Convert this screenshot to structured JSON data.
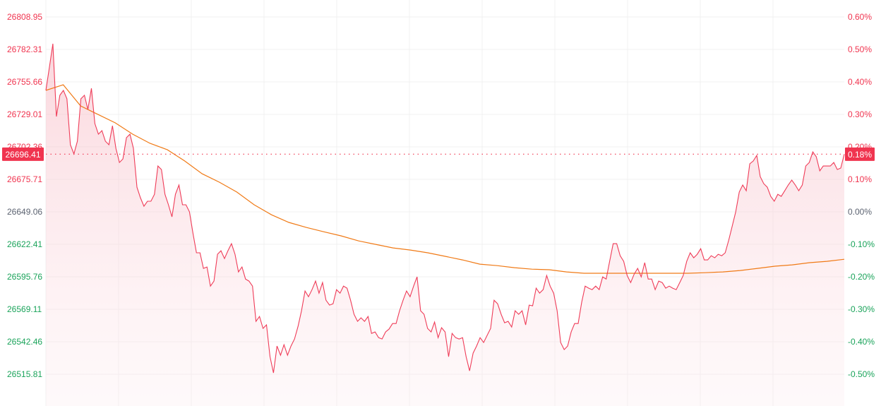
{
  "chart_data": {
    "type": "line",
    "title": "",
    "xlabel": "",
    "ylabel": "",
    "base_price": 26649.06,
    "current_price_label": "26696.41",
    "current_change_label": "0.18%",
    "current_price": 26696.41,
    "left_ticks": [
      "26808.95",
      "26782.31",
      "26755.66",
      "26729.01",
      "26702.36",
      "26675.71",
      "26649.06",
      "26622.41",
      "26595.76",
      "26569.11",
      "26542.46",
      "26515.81"
    ],
    "right_ticks": [
      "0.60%",
      "0.50%",
      "0.40%",
      "0.30%",
      "0.20%",
      "0.10%",
      "0.00%",
      "-0.10%",
      "-0.20%",
      "-0.30%",
      "-0.40%",
      "-0.50%"
    ],
    "ylim": [
      26489.16,
      26822.27
    ],
    "grid": true,
    "colors": {
      "up": "#f0344f",
      "down": "#1aa35a",
      "flat": "#5b6270",
      "price_line": "#ef3c58",
      "avg_line": "#f07a16",
      "grid": "#f1f1f1"
    },
    "series": [
      {
        "key": "price",
        "values": [
          26748.7,
          26767.8,
          26787.0,
          26727.3,
          26744.7,
          26748.7,
          26741.8,
          26704.1,
          26696.6,
          26707.0,
          26741.8,
          26744.7,
          26733.1,
          26750.4,
          26721.5,
          26712.8,
          26715.7,
          26707.0,
          26704.1,
          26719.7,
          26701.2,
          26689.6,
          26692.5,
          26709.9,
          26712.8,
          26701.2,
          26669.3,
          26660.7,
          26653.7,
          26657.8,
          26657.8,
          26663.5,
          26686.7,
          26683.8,
          26663.5,
          26654.9,
          26645.0,
          26663.5,
          26671.1,
          26654.9,
          26654.9,
          26649.1,
          26631.7,
          26615.5,
          26615.5,
          26602.7,
          26603.9,
          26588.2,
          26592.3,
          26614.3,
          26617.2,
          26610.8,
          26617.2,
          26623.0,
          26614.3,
          26599.8,
          26603.9,
          26594.0,
          26592.3,
          26588.2,
          26559.3,
          26563.3,
          26553.5,
          26556.4,
          26530.3,
          26517.0,
          26539.0,
          26531.5,
          26540.1,
          26531.5,
          26539.0,
          26544.8,
          26555.2,
          26568.0,
          26584.2,
          26579.5,
          26585.3,
          26592.3,
          26582.4,
          26591.1,
          26576.6,
          26572.6,
          26573.7,
          26585.3,
          26582.4,
          26588.2,
          26586.5,
          26576.6,
          26565.1,
          26559.3,
          26562.2,
          26559.3,
          26563.3,
          26549.4,
          26550.6,
          26545.9,
          26544.8,
          26550.6,
          26552.9,
          26557.5,
          26557.5,
          26568.0,
          26576.6,
          26584.2,
          26579.5,
          26588.2,
          26595.8,
          26568.0,
          26565.1,
          26553.5,
          26550.6,
          26558.7,
          26545.9,
          26554.1,
          26550.6,
          26530.3,
          26549.4,
          26545.9,
          26544.8,
          26545.9,
          26530.3,
          26518.7,
          26533.2,
          26539.0,
          26545.9,
          26541.9,
          26547.7,
          26553.5,
          26576.6,
          26573.7,
          26565.1,
          26558.1,
          26559.3,
          26554.6,
          26568.0,
          26565.1,
          26568.0,
          26556.4,
          26572.6,
          26572.0,
          26586.5,
          26582.4,
          26585.3,
          26596.9,
          26588.2,
          26582.4,
          26568.0,
          26541.9,
          26536.1,
          26539.0,
          26550.6,
          26557.5,
          26557.5,
          26574.9,
          26588.2,
          26586.5,
          26585.3,
          26588.2,
          26585.3,
          26595.8,
          26594.0,
          26608.5,
          26623.0,
          26623.0,
          26613.1,
          26608.5,
          26596.9,
          26591.1,
          26598.1,
          26602.7,
          26595.8,
          26607.4,
          26594.0,
          26594.0,
          26585.3,
          26592.3,
          26591.1,
          26586.5,
          26588.2,
          26586.5,
          26585.3,
          26591.1,
          26596.9,
          26608.5,
          26615.5,
          26611.4,
          26614.3,
          26618.9,
          26609.7,
          26609.7,
          26613.1,
          26611.4,
          26614.3,
          26613.1,
          26615.5,
          26625.9,
          26637.5,
          26649.1,
          26665.3,
          26671.1,
          26666.4,
          26688.5,
          26690.8,
          26695.4,
          26678.0,
          26672.2,
          26669.3,
          26661.8,
          26657.8,
          26663.5,
          26661.8,
          26666.4,
          26671.1,
          26675.1,
          26671.1,
          26666.4,
          26671.1,
          26686.7,
          26689.6,
          26698.3,
          26694.3,
          26682.7,
          26686.7,
          26686.7,
          26686.7,
          26689.6,
          26683.8,
          26685.0,
          26696.41
        ]
      },
      {
        "key": "average",
        "values": [
          26748.7,
          26753.3,
          26736.0,
          26729.0,
          26722.1,
          26712.8,
          26705.3,
          26700.0,
          26690.8,
          26680.3,
          26673.4,
          26665.3,
          26654.9,
          26646.7,
          26640.4,
          26636.3,
          26632.8,
          26629.4,
          26625.3,
          26622.4,
          26619.5,
          26617.8,
          26615.5,
          26612.6,
          26609.7,
          26606.2,
          26605.0,
          26603.3,
          26602.1,
          26601.6,
          26599.8,
          26598.7,
          26598.7,
          26598.7,
          26598.7,
          26598.7,
          26598.7,
          26598.7,
          26599.2,
          26599.8,
          26601.0,
          26602.7,
          26604.5,
          26605.6,
          26607.4,
          26608.5,
          26610.2
        ]
      }
    ]
  }
}
